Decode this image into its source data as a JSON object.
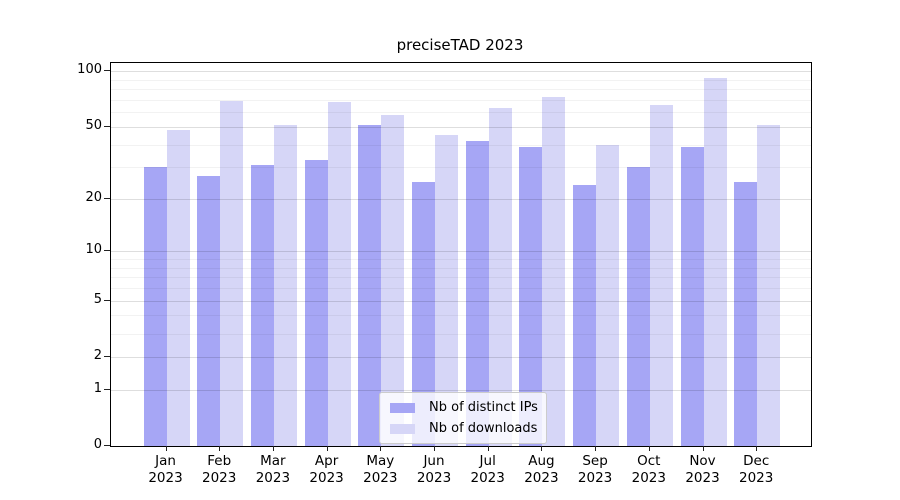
{
  "chart_data": {
    "type": "bar",
    "title": "preciseTAD 2023",
    "categories": [
      "Jan 2023",
      "Feb 2023",
      "Mar 2023",
      "Apr 2023",
      "May 2023",
      "Jun 2023",
      "Jul 2023",
      "Aug 2023",
      "Sep 2023",
      "Oct 2023",
      "Nov 2023",
      "Dec 2023"
    ],
    "series": [
      {
        "name": "Nb of distinct IPs",
        "color": "#a6a6f5",
        "values": [
          30,
          27,
          31,
          33,
          51,
          25,
          42,
          39,
          24,
          30,
          39,
          25
        ]
      },
      {
        "name": "Nb of downloads",
        "color": "#d6d6f7",
        "values": [
          48,
          69,
          51,
          68,
          58,
          45,
          63,
          73,
          40,
          66,
          92,
          51
        ]
      }
    ],
    "xlabel": "",
    "ylabel": "",
    "yscale": "log1p",
    "ylim": [
      0,
      111
    ],
    "yticks_major": [
      0,
      1,
      2,
      5,
      10,
      20,
      50,
      100
    ],
    "yticks_minor": [
      3,
      4,
      6,
      7,
      8,
      9,
      30,
      40,
      60,
      70,
      80,
      90
    ],
    "grid": true,
    "legend_position": "inside-lower-center",
    "axis_color": "#000000",
    "grid_major_color": "rgba(0,0,0,0.13)",
    "grid_minor_color": "rgba(0,0,0,0.05)"
  }
}
